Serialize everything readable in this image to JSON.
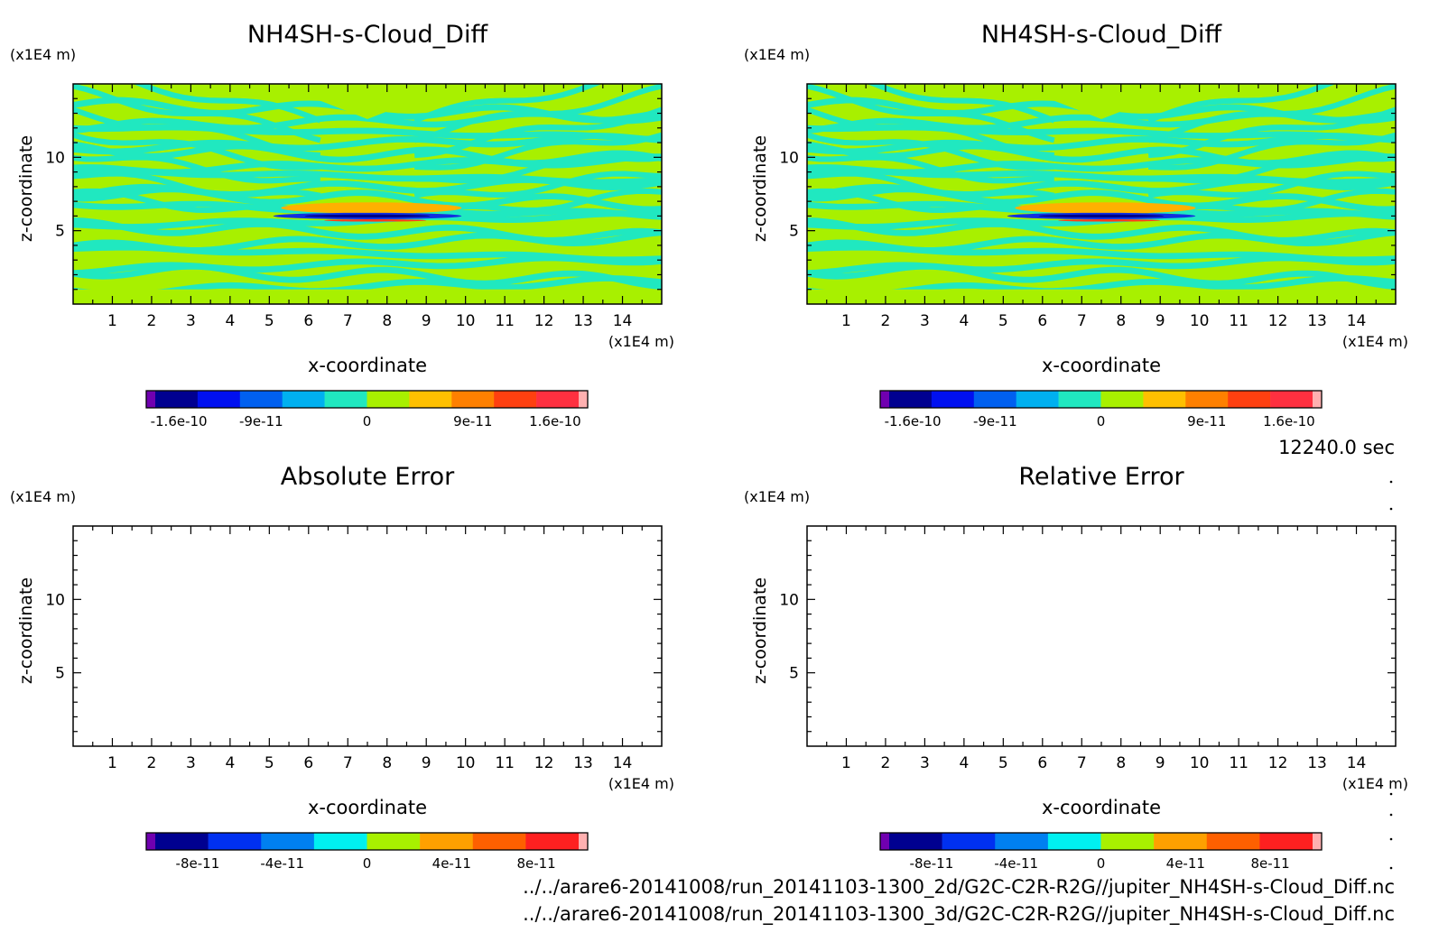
{
  "time_label": "12240.0 sec",
  "file_paths": [
    "../../arare6-20141008/run_20141103-1300_2d/G2C-C2R-R2G//jupiter_NH4SH-s-Cloud_Diff.nc",
    "../../arare6-20141008/run_20141103-1300_3d/G2C-C2R-R2G//jupiter_NH4SH-s-Cloud_Diff.nc"
  ],
  "colors": {
    "background": "#ffffff",
    "field_bg": "#a8f000",
    "field_stripe": "#20e8c0",
    "field_orange": "#ffb000",
    "field_red": "#ff3a1a",
    "field_blue": "#1030e0",
    "field_navy": "#000088"
  },
  "chart_data": [
    {
      "type": "heatmap",
      "title": "NH4SH-s-Cloud_Diff",
      "xlabel": "x-coordinate",
      "ylabel": "z-coordinate",
      "x_unit": "(x1E4 m)",
      "y_unit": "(x1E4 m)",
      "xlim": [
        0,
        15
      ],
      "ylim": [
        0,
        15
      ],
      "x_ticks": [
        "1",
        "2",
        "3",
        "4",
        "5",
        "6",
        "7",
        "8",
        "9",
        "10",
        "11",
        "12",
        "13",
        "14"
      ],
      "y_ticks": [
        "5",
        "10"
      ],
      "field": "filled",
      "colorbar": {
        "colors": [
          "#7000b0",
          "#000090",
          "#0010f0",
          "#0060f0",
          "#00b0f0",
          "#20e8c0",
          "#a8f000",
          "#ffc000",
          "#ff8000",
          "#ff4010",
          "#ff3040",
          "#ffb0b0"
        ],
        "labels": [
          "-1.6e-10",
          "-9e-11",
          "0",
          "9e-11",
          "1.6e-10"
        ],
        "label_values": [
          -1.6e-10,
          -9e-11,
          0,
          9e-11,
          1.6e-10
        ],
        "range": [
          -1.8e-10,
          1.8e-10
        ]
      }
    },
    {
      "type": "heatmap",
      "title": "NH4SH-s-Cloud_Diff",
      "xlabel": "x-coordinate",
      "ylabel": "z-coordinate",
      "x_unit": "(x1E4 m)",
      "y_unit": "(x1E4 m)",
      "xlim": [
        0,
        15
      ],
      "ylim": [
        0,
        15
      ],
      "x_ticks": [
        "1",
        "2",
        "3",
        "4",
        "5",
        "6",
        "7",
        "8",
        "9",
        "10",
        "11",
        "12",
        "13",
        "14"
      ],
      "y_ticks": [
        "5",
        "10"
      ],
      "field": "filled",
      "colorbar": {
        "colors": [
          "#7000b0",
          "#000090",
          "#0010f0",
          "#0060f0",
          "#00b0f0",
          "#20e8c0",
          "#a8f000",
          "#ffc000",
          "#ff8000",
          "#ff4010",
          "#ff3040",
          "#ffb0b0"
        ],
        "labels": [
          "-1.6e-10",
          "-9e-11",
          "0",
          "9e-11",
          "1.6e-10"
        ],
        "label_values": [
          -1.6e-10,
          -9e-11,
          0,
          9e-11,
          1.6e-10
        ],
        "range": [
          -1.8e-10,
          1.8e-10
        ]
      }
    },
    {
      "type": "heatmap",
      "title": "Absolute Error",
      "xlabel": "x-coordinate",
      "ylabel": "z-coordinate",
      "x_unit": "(x1E4 m)",
      "y_unit": "(x1E4 m)",
      "xlim": [
        0,
        15
      ],
      "ylim": [
        0,
        15
      ],
      "x_ticks": [
        "1",
        "2",
        "3",
        "4",
        "5",
        "6",
        "7",
        "8",
        "9",
        "10",
        "11",
        "12",
        "13",
        "14"
      ],
      "y_ticks": [
        "5",
        "10"
      ],
      "field": "empty",
      "colorbar": {
        "colors": [
          "#7000b0",
          "#000090",
          "#0030f0",
          "#0080f0",
          "#00f0f0",
          "#a8f000",
          "#ffa000",
          "#ff6000",
          "#ff2020",
          "#ffb0b0"
        ],
        "labels": [
          "-8e-11",
          "-4e-11",
          "0",
          "4e-11",
          "8e-11"
        ],
        "label_values": [
          -8e-11,
          -4e-11,
          0,
          4e-11,
          8e-11
        ],
        "range": [
          -1e-10,
          1e-10
        ]
      }
    },
    {
      "type": "heatmap",
      "title": "Relative Error",
      "xlabel": "x-coordinate",
      "ylabel": "z-coordinate",
      "x_unit": "(x1E4 m)",
      "y_unit": "(x1E4 m)",
      "xlim": [
        0,
        15
      ],
      "ylim": [
        0,
        15
      ],
      "x_ticks": [
        "1",
        "2",
        "3",
        "4",
        "5",
        "6",
        "7",
        "8",
        "9",
        "10",
        "11",
        "12",
        "13",
        "14"
      ],
      "y_ticks": [
        "5",
        "10"
      ],
      "field": "empty",
      "colorbar": {
        "colors": [
          "#7000b0",
          "#000090",
          "#0030f0",
          "#0080f0",
          "#00f0f0",
          "#a8f000",
          "#ffa000",
          "#ff6000",
          "#ff2020",
          "#ffb0b0"
        ],
        "labels": [
          "-8e-11",
          "-4e-11",
          "0",
          "4e-11",
          "8e-11"
        ],
        "label_values": [
          -8e-11,
          -4e-11,
          0,
          4e-11,
          8e-11
        ],
        "range": [
          -1e-10,
          1e-10
        ]
      }
    }
  ]
}
